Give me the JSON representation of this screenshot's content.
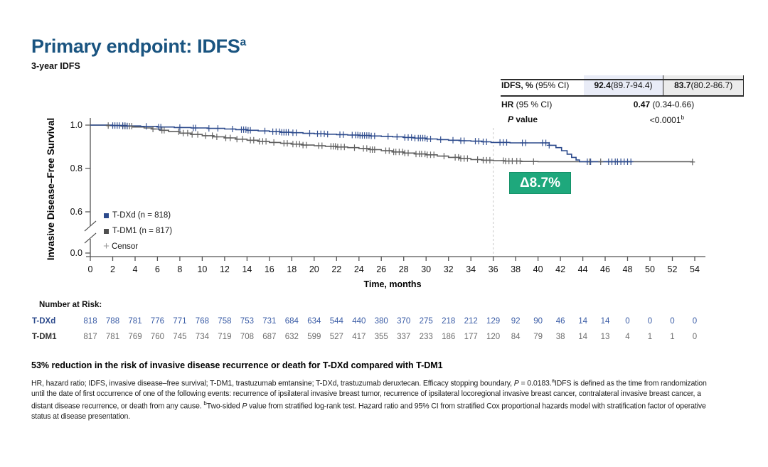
{
  "slide": {
    "title": "Primary endpoint: IDFS^{a}",
    "subtitle": "3-year IDFS"
  },
  "stats_table": {
    "row_idfs": {
      "label": "**IDFS, %** (95% CI)",
      "tdxd_value": "**92.4** (89.7-94.4)",
      "tdm1_value": "**83.7** (80.2-86.7)"
    },
    "row_hr": {
      "label": "**HR** (95 % CI)",
      "value": "**0.47** (0.34-0.66)"
    },
    "row_p": {
      "label": "***P* value**",
      "value": "<0.0001^{b}"
    },
    "colors": {
      "tdxd_cell_bg": "#e9ecf7",
      "tdm1_cell_bg": "#ebebeb",
      "border": "#2d2d2d"
    }
  },
  "chart_data": {
    "type": "line",
    "subtype": "kaplan-meier",
    "xlabel": "Time, months",
    "ylabel": "Invasive Disease–Free Survival",
    "x_ticks": [
      0,
      2,
      4,
      6,
      8,
      10,
      12,
      14,
      16,
      18,
      20,
      22,
      24,
      26,
      28,
      30,
      32,
      34,
      36,
      38,
      40,
      42,
      44,
      46,
      48,
      50,
      52,
      54
    ],
    "y_ticks": [
      {
        "label": "1.0",
        "v": 1.0
      },
      {
        "label": "0.8",
        "v": 0.8
      },
      {
        "label": "0.6",
        "v": 0.6
      },
      {
        "label": "0.0",
        "v": 0.0
      }
    ],
    "y_axis_break_between": [
      0.6,
      0.0
    ],
    "xlim": [
      0,
      54
    ],
    "ref_line_month": 36,
    "annotation": {
      "label": "Δ8.7%",
      "color": "#1ea87c"
    },
    "legend": [
      {
        "label": "T-DXd (n = 818)",
        "marker": "square",
        "color": "#2c4a8c"
      },
      {
        "label": "T-DM1 (n = 817)",
        "marker": "square",
        "color": "#4f4f4f"
      },
      {
        "label": "Censor",
        "marker": "plus",
        "color": "#9a9a9a"
      }
    ],
    "series": [
      {
        "name": "T-DM1",
        "color": "#5f5f5f",
        "steps": [
          [
            0,
            1
          ],
          [
            1.5,
            0.998
          ],
          [
            2.8,
            0.995
          ],
          [
            3.8,
            0.991
          ],
          [
            4.8,
            0.987
          ],
          [
            5.5,
            0.982
          ],
          [
            6.2,
            0.976
          ],
          [
            7,
            0.97
          ],
          [
            8,
            0.963
          ],
          [
            9,
            0.957
          ],
          [
            10,
            0.951
          ],
          [
            11,
            0.946
          ],
          [
            12,
            0.941
          ],
          [
            13,
            0.935
          ],
          [
            14,
            0.93
          ],
          [
            15,
            0.925
          ],
          [
            16,
            0.92
          ],
          [
            17,
            0.916
          ],
          [
            18,
            0.912
          ],
          [
            19,
            0.908
          ],
          [
            20,
            0.905
          ],
          [
            21,
            0.902
          ],
          [
            22,
            0.899
          ],
          [
            23,
            0.896
          ],
          [
            24,
            0.892
          ],
          [
            25,
            0.887
          ],
          [
            26,
            0.882
          ],
          [
            27,
            0.876
          ],
          [
            28,
            0.871
          ],
          [
            29,
            0.867
          ],
          [
            30,
            0.863
          ],
          [
            31,
            0.857
          ],
          [
            32,
            0.851
          ],
          [
            33,
            0.846
          ],
          [
            34,
            0.841
          ],
          [
            35,
            0.838
          ],
          [
            36,
            0.836
          ],
          [
            37,
            0.834
          ],
          [
            38.5,
            0.832
          ],
          [
            40,
            0.831
          ],
          [
            53.8,
            0.83
          ]
        ],
        "censor_months": [
          1.6,
          2.9,
          3.1,
          3.3,
          3.5,
          3.7,
          5.6,
          6.4,
          6.6,
          7.9,
          8.3,
          8.7,
          9.1,
          9.6,
          10.3,
          10.9,
          11.3,
          12.1,
          12.5,
          13.1,
          13.6,
          14.3,
          14.6,
          15.1,
          15.4,
          15.7,
          16.4,
          17.3,
          17.6,
          18.1,
          18.4,
          18.7,
          19.0,
          19.3,
          20.4,
          20.7,
          21.5,
          21.7,
          21.9,
          22.1,
          22.4,
          22.7,
          23.6,
          24.4,
          24.7,
          25.0,
          25.2,
          25.4,
          26.4,
          26.7,
          27.1,
          27.3,
          27.6,
          27.9,
          28.1,
          28.4,
          29.1,
          29.4,
          29.6,
          29.9,
          30.1,
          30.4,
          30.7,
          31.6,
          32.6,
          32.9,
          33.1,
          33.4,
          33.7,
          34.6,
          35.1,
          35.4,
          35.7,
          36.9,
          37.1,
          37.4,
          37.7,
          38.1,
          38.4,
          39.6,
          44.6,
          45.6,
          53.8
        ]
      },
      {
        "name": "T-DXd",
        "color": "#2c4a8c",
        "steps": [
          [
            0,
            1
          ],
          [
            2,
            0.998
          ],
          [
            3.2,
            0.996
          ],
          [
            4.5,
            0.994
          ],
          [
            6,
            0.991
          ],
          [
            7.5,
            0.989
          ],
          [
            9,
            0.987
          ],
          [
            10.5,
            0.985
          ],
          [
            12,
            0.982
          ],
          [
            13,
            0.979
          ],
          [
            14,
            0.976
          ],
          [
            15,
            0.973
          ],
          [
            16,
            0.97
          ],
          [
            17,
            0.967
          ],
          [
            18,
            0.965
          ],
          [
            19,
            0.962
          ],
          [
            20,
            0.96
          ],
          [
            21,
            0.958
          ],
          [
            22,
            0.956
          ],
          [
            23,
            0.954
          ],
          [
            24,
            0.952
          ],
          [
            25,
            0.95
          ],
          [
            26,
            0.948
          ],
          [
            27,
            0.946
          ],
          [
            28,
            0.943
          ],
          [
            29,
            0.94
          ],
          [
            30,
            0.936
          ],
          [
            31,
            0.933
          ],
          [
            32,
            0.93
          ],
          [
            33,
            0.928
          ],
          [
            34,
            0.926
          ],
          [
            35,
            0.923
          ],
          [
            35.8,
            0.92
          ],
          [
            37.5,
            0.918
          ],
          [
            41,
            0.907
          ],
          [
            41.6,
            0.896
          ],
          [
            42.1,
            0.882
          ],
          [
            42.6,
            0.866
          ],
          [
            43,
            0.851
          ],
          [
            43.4,
            0.839
          ],
          [
            43.7,
            0.831
          ],
          [
            48.4,
            0.831
          ]
        ],
        "censor_months": [
          2.0,
          2.2,
          2.4,
          2.6,
          2.9,
          3.1,
          3.3,
          5.0,
          6.1,
          6.3,
          8.0,
          9.2,
          9.4,
          10.6,
          11.4,
          12.7,
          13.5,
          13.7,
          13.9,
          14.1,
          14.3,
          15.6,
          16.3,
          16.6,
          16.9,
          17.1,
          17.3,
          17.5,
          17.7,
          18.1,
          18.4,
          19.6,
          20.3,
          20.6,
          20.9,
          21.2,
          22.3,
          22.6,
          23.4,
          23.7,
          23.9,
          24.1,
          24.3,
          24.5,
          24.7,
          24.9,
          25.1,
          25.4,
          26.6,
          27.4,
          28.1,
          28.4,
          28.7,
          29.0,
          29.3,
          29.5,
          29.7,
          29.9,
          30.1,
          30.4,
          31.3,
          32.4,
          33.1,
          33.4,
          34.4,
          34.7,
          35.1,
          35.4,
          36.6,
          36.9,
          37.2,
          38.6,
          38.9,
          40.4,
          40.7,
          41.0,
          44.4,
          44.7,
          46.3,
          46.6,
          46.9,
          47.1,
          47.4,
          47.7,
          48.0,
          48.3
        ]
      }
    ]
  },
  "risk_table": {
    "heading": "Number at Risk:",
    "rows": [
      {
        "label": "T-DXd",
        "label_color": "#2c4a8c",
        "number_color": "#3a5ca6",
        "values": [
          818,
          788,
          781,
          776,
          771,
          768,
          758,
          753,
          731,
          684,
          634,
          544,
          440,
          380,
          370,
          275,
          218,
          212,
          129,
          92,
          90,
          46,
          14,
          14,
          0,
          0,
          0,
          0
        ]
      },
      {
        "label": "T-DM1",
        "label_color": "#333333",
        "number_color": "#6e6e6e",
        "values": [
          817,
          781,
          769,
          760,
          745,
          734,
          719,
          708,
          687,
          632,
          599,
          527,
          417,
          355,
          337,
          233,
          186,
          177,
          120,
          84,
          79,
          38,
          14,
          13,
          4,
          1,
          1,
          0
        ]
      }
    ]
  },
  "footer": {
    "headline": "53% reduction in the risk of invasive disease recurrence or death for T-DXd compared with T-DM1",
    "footnote": "HR, hazard ratio; IDFS, invasive disease–free survival; T-DM1, trastuzumab emtansine; T-DXd, trastuzumab deruxtecan. Efficacy stopping boundary, *P* = 0.0183.^{a}IDFS is defined as the time from randomization until the date of first occurrence of one of the following events: recurrence of ipsilateral invasive breast tumor, recurrence of ipsilateral locoregional invasive breast cancer, contralateral invasive breast cancer, a distant disease recurrence, or death from any cause. ^{b}Two-sided *P* value from stratified log-rank test. Hazard ratio and 95% CI from stratified Cox proportional hazards model with stratification factor of operative status at disease presentation."
  }
}
